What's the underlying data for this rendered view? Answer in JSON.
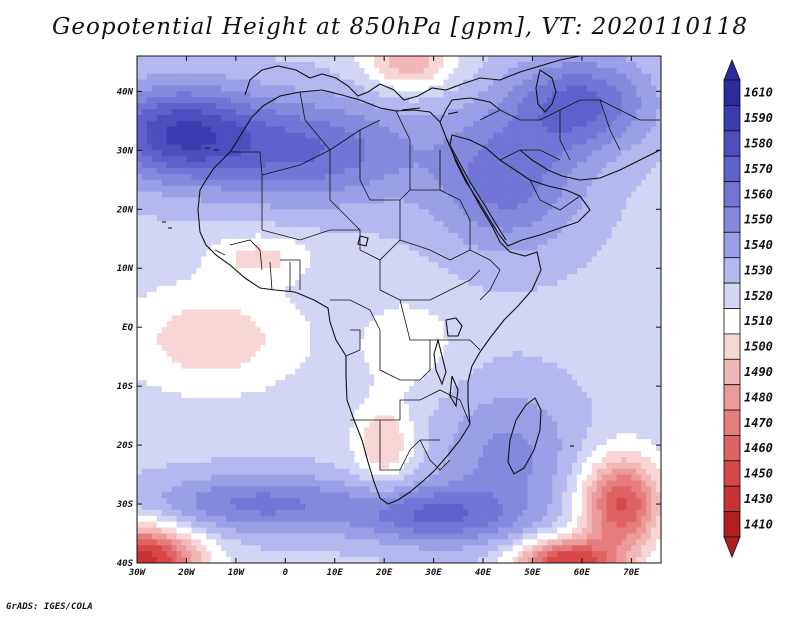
{
  "title": "Geopotential Height at 850hPa [gpm], VT: 2020110118",
  "credit": "GrADS: IGES/COLA",
  "map": {
    "lon_range": [
      -30,
      76
    ],
    "lat_range": [
      -40,
      46
    ],
    "lat_ticks": [
      {
        "value": 40,
        "label": "40N"
      },
      {
        "value": 30,
        "label": "30N"
      },
      {
        "value": 20,
        "label": "20N"
      },
      {
        "value": 10,
        "label": "10N"
      },
      {
        "value": 0,
        "label": "EQ"
      },
      {
        "value": -10,
        "label": "10S"
      },
      {
        "value": -20,
        "label": "20S"
      },
      {
        "value": -30,
        "label": "30S"
      },
      {
        "value": -40,
        "label": "40S"
      }
    ],
    "lon_ticks": [
      {
        "value": -30,
        "label": "30W"
      },
      {
        "value": -20,
        "label": "20W"
      },
      {
        "value": -10,
        "label": "10W"
      },
      {
        "value": 0,
        "label": "0"
      },
      {
        "value": 10,
        "label": "10E"
      },
      {
        "value": 20,
        "label": "20E"
      },
      {
        "value": 30,
        "label": "30E"
      },
      {
        "value": 40,
        "label": "40E"
      },
      {
        "value": 50,
        "label": "50E"
      },
      {
        "value": 60,
        "label": "60E"
      },
      {
        "value": 70,
        "label": "70E"
      }
    ]
  },
  "colorbar": {
    "levels": [
      {
        "label": "1610",
        "color": "#2b2b9e"
      },
      {
        "label": "1590",
        "color": "#3a3cb0"
      },
      {
        "label": "1580",
        "color": "#4b4fc0"
      },
      {
        "label": "1570",
        "color": "#5d62cc"
      },
      {
        "label": "1560",
        "color": "#7075d6"
      },
      {
        "label": "1550",
        "color": "#8589de"
      },
      {
        "label": "1540",
        "color": "#9b9fe6"
      },
      {
        "label": "1530",
        "color": "#b5b8ee"
      },
      {
        "label": "1520",
        "color": "#d3d5f5"
      },
      {
        "label": "1510",
        "color": "#ffffff"
      },
      {
        "label": "1500",
        "color": "#f8d6d6"
      },
      {
        "label": "1490",
        "color": "#f2b8b8"
      },
      {
        "label": "1480",
        "color": "#ec9b9b"
      },
      {
        "label": "1470",
        "color": "#e57d7d"
      },
      {
        "label": "1460",
        "color": "#de6262"
      },
      {
        "label": "1450",
        "color": "#d64848"
      },
      {
        "label": "1430",
        "color": "#c83232"
      },
      {
        "label": "1410",
        "color": "#b01e1e"
      }
    ]
  },
  "field": {
    "base_value": 1522,
    "features": [
      {
        "name": "subtropical-high-north-atlantic",
        "lon": -22,
        "lat": 33,
        "sx": 16,
        "sy": 8,
        "amp": 58
      },
      {
        "name": "subtropical-high-sahara",
        "lon": 5,
        "lat": 30,
        "sx": 22,
        "sy": 9,
        "amp": 42
      },
      {
        "name": "arabian-high",
        "lon": 45,
        "lat": 25,
        "sx": 15,
        "sy": 12,
        "amp": 38
      },
      {
        "name": "mediterranean-low",
        "lon": 25,
        "lat": 45,
        "sx": 9,
        "sy": 5,
        "amp": -35
      },
      {
        "name": "iran-high",
        "lon": 60,
        "lat": 38,
        "sx": 14,
        "sy": 8,
        "amp": 45
      },
      {
        "name": "west-africa-low",
        "lon": -5,
        "lat": 12,
        "sx": 10,
        "sy": 4,
        "amp": -20
      },
      {
        "name": "atlantic-equatorial-low",
        "lon": -15,
        "lat": -2,
        "sx": 18,
        "sy": 9,
        "amp": -24
      },
      {
        "name": "central-africa-low",
        "lon": 25,
        "lat": -3,
        "sx": 10,
        "sy": 8,
        "amp": -14
      },
      {
        "name": "kalahari-low",
        "lon": 20,
        "lat": -20,
        "sx": 6,
        "sy": 7,
        "amp": -28
      },
      {
        "name": "south-atlantic-high",
        "lon": -5,
        "lat": -30,
        "sx": 22,
        "sy": 5,
        "amp": 36
      },
      {
        "name": "south-africa-high",
        "lon": 30,
        "lat": -32,
        "sx": 16,
        "sy": 5,
        "amp": 40
      },
      {
        "name": "indian-ocean-high",
        "lon": 45,
        "lat": -22,
        "sx": 14,
        "sy": 12,
        "amp": 26
      },
      {
        "name": "southwest-low",
        "lon": -30,
        "lat": -40,
        "sx": 12,
        "sy": 6,
        "amp": -95
      },
      {
        "name": "mascarene-low",
        "lon": 68,
        "lat": -30,
        "sx": 8,
        "sy": 8,
        "amp": -70
      },
      {
        "name": "south-indian-low",
        "lon": 57,
        "lat": -40,
        "sx": 10,
        "sy": 4,
        "amp": -80
      }
    ]
  }
}
